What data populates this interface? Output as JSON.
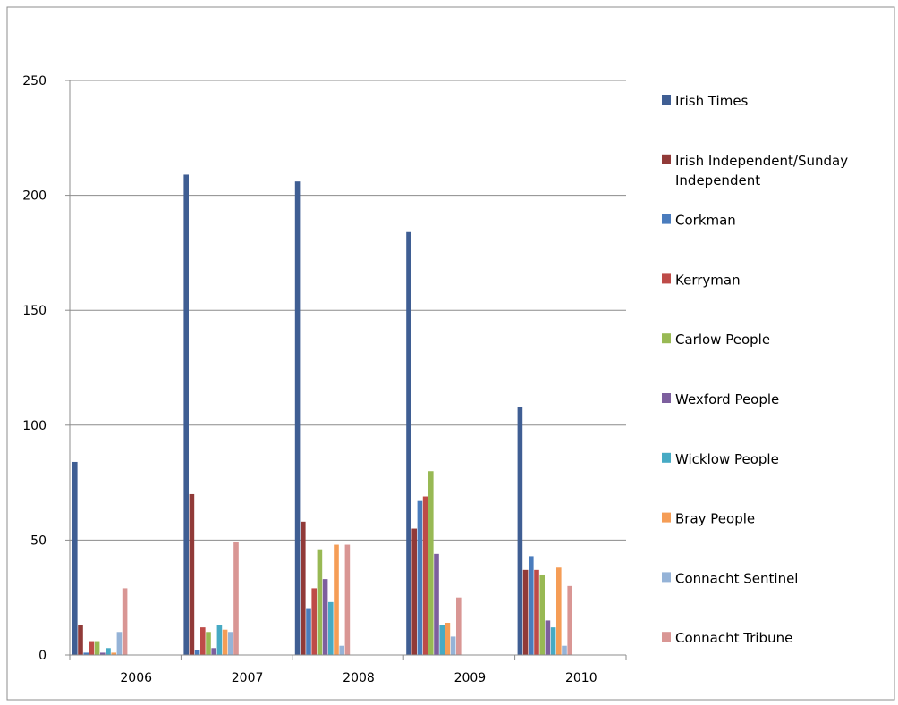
{
  "chart_data": {
    "type": "bar",
    "title": "",
    "xlabel": "",
    "ylabel": "",
    "categories": [
      "2006",
      "2007",
      "2008",
      "2009",
      "2010"
    ],
    "ylim": [
      0,
      250
    ],
    "yticks": [
      0,
      50,
      100,
      150,
      200,
      250
    ],
    "ytick_labels": [
      "0",
      "50",
      "100",
      "150",
      "200",
      "250"
    ],
    "grid": true,
    "legend_position": "right",
    "series": [
      {
        "name": "Irish Times",
        "color": "#3F5E93",
        "values": [
          84,
          209,
          206,
          184,
          108
        ]
      },
      {
        "name": "Irish Independent/Sunday Independent",
        "color": "#913A38",
        "values": [
          13,
          70,
          58,
          55,
          37
        ]
      },
      {
        "name": "Corkman",
        "color": "#4A7CBD",
        "values": [
          1,
          2,
          20,
          67,
          43
        ]
      },
      {
        "name": "Kerryman",
        "color": "#BE4B48",
        "values": [
          6,
          12,
          29,
          69,
          37
        ]
      },
      {
        "name": "Carlow People",
        "color": "#98B954",
        "values": [
          6,
          10,
          46,
          80,
          35
        ]
      },
      {
        "name": "Wexford People",
        "color": "#7D5F9E",
        "values": [
          1,
          3,
          33,
          44,
          15
        ]
      },
      {
        "name": "Wicklow People",
        "color": "#46AAC4",
        "values": [
          3,
          13,
          23,
          13,
          12
        ]
      },
      {
        "name": "Bray People",
        "color": "#F59D56",
        "values": [
          1,
          11,
          48,
          14,
          38
        ]
      },
      {
        "name": "Connacht Sentinel",
        "color": "#95B3D7",
        "values": [
          10,
          10,
          4,
          8,
          4
        ]
      },
      {
        "name": "Connacht Tribune",
        "color": "#D99694",
        "values": [
          29,
          49,
          48,
          25,
          30
        ]
      }
    ]
  }
}
